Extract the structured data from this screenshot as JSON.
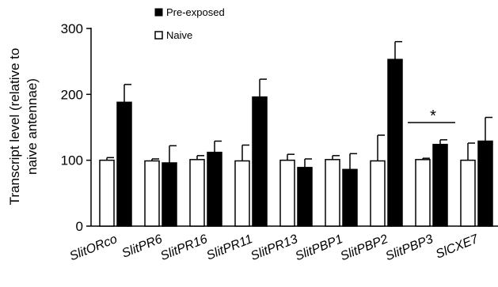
{
  "chart_data": {
    "type": "bar",
    "title": "",
    "xlabel": "",
    "ylabel_lines": [
      "Transcript level (relative to",
      "naive antennae)"
    ],
    "ylim": [
      0,
      300
    ],
    "yticks": [
      0,
      100,
      200,
      300
    ],
    "categories": [
      "SlitORco",
      "SlitPR6",
      "SlitPR16",
      "SlitPR11",
      "SlitPR13",
      "SlitPBP1",
      "SlitPBP2",
      "SlitPBP3",
      "SlCXE7"
    ],
    "series": [
      {
        "name": "Naive",
        "color": "#ffffff",
        "values": [
          100,
          99,
          101,
          99,
          100,
          101,
          99,
          101,
          100
        ],
        "errors": [
          4,
          3,
          6,
          24,
          9,
          6,
          39,
          2,
          26
        ]
      },
      {
        "name": "Pre-exposed",
        "color": "#000000",
        "values": [
          188,
          96,
          112,
          196,
          89,
          86,
          253,
          124,
          129
        ],
        "errors": [
          27,
          26,
          17,
          27,
          13,
          24,
          27,
          7,
          36
        ]
      }
    ],
    "legend": {
      "placement": "top-left",
      "entries": [
        "Pre-exposed",
        "Naive"
      ]
    },
    "annotations": [
      {
        "text": "*",
        "category": "SlitPBP3",
        "meaning": "significant difference"
      }
    ],
    "grid": false
  }
}
